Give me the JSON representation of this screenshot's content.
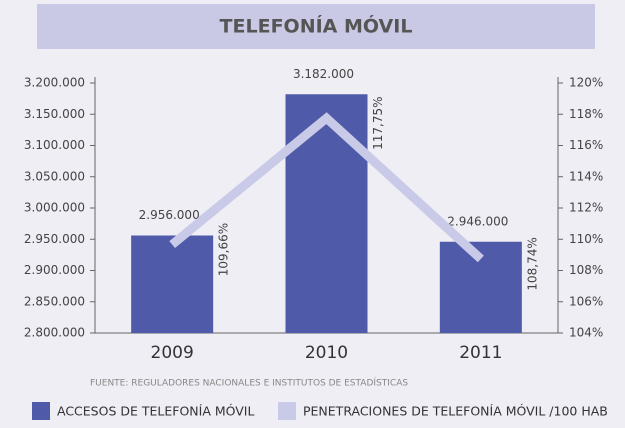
{
  "chart_data": {
    "type": "bar",
    "title": "TELEFONÍA MÓVIL",
    "categories": [
      "2009",
      "2010",
      "2011"
    ],
    "series": [
      {
        "name": "ACCESOS DE TELEFONÍA MÓVIL",
        "type": "bar",
        "color": "#4f5aa8",
        "values": [
          2956000,
          3182000,
          2946000
        ],
        "value_labels": [
          "2.956.000",
          "3.182.000",
          "2.946.000"
        ]
      },
      {
        "name": "PENETRACIONES DE TELEFONÍA MÓVIL /100 HAB",
        "type": "line",
        "axis": "y2",
        "color": "#c9cae8",
        "values": [
          109.66,
          117.75,
          108.74
        ],
        "value_labels": [
          "109,66%",
          "117,75%",
          "108,74%"
        ]
      }
    ],
    "ylim": [
      2800000,
      3200000
    ],
    "yticks": [
      {
        "value": 2800000,
        "label": "2.800.000"
      },
      {
        "value": 2850000,
        "label": "2.850.000"
      },
      {
        "value": 2900000,
        "label": "2.900.000"
      },
      {
        "value": 2950000,
        "label": "2.950.000"
      },
      {
        "value": 3000000,
        "label": "3.000.000"
      },
      {
        "value": 3050000,
        "label": "3.050.000"
      },
      {
        "value": 3100000,
        "label": "3.100.000"
      },
      {
        "value": 3150000,
        "label": "3.150.000"
      },
      {
        "value": 3200000,
        "label": "3.200.000"
      }
    ],
    "y2lim": [
      104,
      120
    ],
    "y2ticks": [
      {
        "value": 104,
        "label": "104%"
      },
      {
        "value": 106,
        "label": "106%"
      },
      {
        "value": 108,
        "label": "108%"
      },
      {
        "value": 110,
        "label": "110%"
      },
      {
        "value": 112,
        "label": "112%"
      },
      {
        "value": 114,
        "label": "114%"
      },
      {
        "value": 116,
        "label": "116%"
      },
      {
        "value": 118,
        "label": "118%"
      },
      {
        "value": 120,
        "label": "120%"
      }
    ],
    "source": "FUENTE: REGULADORES NACIONALES E INSTITUTOS DE ESTADÍSTICAS"
  }
}
